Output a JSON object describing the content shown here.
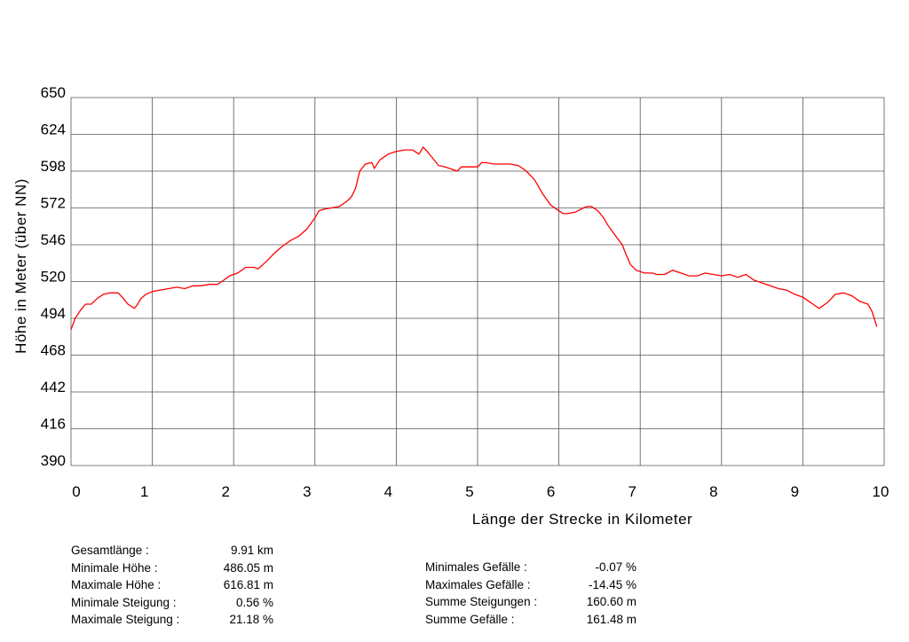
{
  "chart_data": {
    "type": "line",
    "xlabel": "Länge der Strecke in Kilometer",
    "ylabel": "Höhe in Meter (über NN)",
    "xlim": [
      0,
      10
    ],
    "ylim": [
      390,
      650
    ],
    "x_ticks": [
      "0",
      "1",
      "2",
      "3",
      "4",
      "5",
      "6",
      "7",
      "8",
      "9",
      "10"
    ],
    "y_ticks": [
      "650",
      "624",
      "598",
      "572",
      "546",
      "520",
      "494",
      "468",
      "442",
      "416",
      "390"
    ],
    "grid": true,
    "line_color": "#ff0000",
    "series": [
      {
        "x": [
          0,
          0.05,
          0.12,
          0.18,
          0.25,
          0.32,
          0.4,
          0.48,
          0.58,
          0.63,
          0.7,
          0.78,
          0.82,
          0.86,
          0.92,
          1.0,
          1.1,
          1.2,
          1.3,
          1.4,
          1.5,
          1.6,
          1.7,
          1.8,
          1.88,
          1.95,
          2.05,
          2.15,
          2.25,
          2.3,
          2.4,
          2.5,
          2.6,
          2.7,
          2.8,
          2.9,
          3.0,
          3.05,
          3.1,
          3.2,
          3.3,
          3.4,
          3.45,
          3.5,
          3.55,
          3.62,
          3.7,
          3.73,
          3.8,
          3.9,
          4.0,
          4.1,
          4.2,
          4.28,
          4.33,
          4.38,
          4.45,
          4.52,
          4.6,
          4.7,
          4.75,
          4.8,
          4.9,
          5.0,
          5.05,
          5.1,
          5.2,
          5.3,
          5.4,
          5.5,
          5.6,
          5.7,
          5.8,
          5.9,
          6.0,
          6.05,
          6.1,
          6.2,
          6.3,
          6.35,
          6.4,
          6.48,
          6.55,
          6.6,
          6.7,
          6.78,
          6.82,
          6.88,
          6.95,
          7.05,
          7.15,
          7.2,
          7.3,
          7.4,
          7.5,
          7.6,
          7.7,
          7.8,
          7.9,
          8.0,
          8.1,
          8.2,
          8.3,
          8.4,
          8.5,
          8.6,
          8.7,
          8.8,
          8.9,
          9.0,
          9.05,
          9.1,
          9.15,
          9.2,
          9.3,
          9.4,
          9.5,
          9.6,
          9.7,
          9.8,
          9.85,
          9.91
        ],
        "y": [
          486,
          494,
          500,
          504,
          504,
          508,
          511,
          512,
          512,
          509,
          504,
          501,
          504,
          508,
          511,
          513,
          514,
          515,
          516,
          515,
          517,
          517,
          518,
          518,
          521,
          524,
          526,
          530,
          530,
          529,
          534,
          540,
          545,
          549,
          552,
          557,
          565,
          570,
          571,
          572,
          573,
          577,
          580,
          586,
          598,
          603,
          604,
          600,
          606,
          610,
          612,
          613,
          613,
          610,
          615,
          612,
          607,
          602,
          601,
          599,
          598,
          601,
          601,
          601,
          604,
          604,
          603,
          603,
          603,
          602,
          598,
          592,
          582,
          574,
          570,
          568,
          568,
          569,
          572,
          573,
          573,
          570,
          565,
          560,
          552,
          546,
          540,
          532,
          528,
          526,
          526,
          525,
          525,
          528,
          526,
          524,
          524,
          526,
          525,
          524,
          525,
          523,
          525,
          521,
          519,
          517,
          515,
          514,
          511,
          509,
          507,
          505,
          503,
          501,
          505,
          511,
          512,
          510,
          506,
          504,
          499,
          488
        ]
      }
    ]
  },
  "stats_left": [
    {
      "label": "Gesamtlänge :",
      "value": "9.91 km"
    },
    {
      "label": "Minimale Höhe :",
      "value": "486.05 m"
    },
    {
      "label": "Maximale Höhe :",
      "value": "616.81 m"
    },
    {
      "label": "Minimale Steigung :",
      "value": "0.56 %"
    },
    {
      "label": "Maximale Steigung :",
      "value": "21.18 %"
    }
  ],
  "stats_right": [
    {
      "label": "Minimales Gefälle :",
      "value": "-0.07 %"
    },
    {
      "label": "Maximales Gefälle :",
      "value": "-14.45 %"
    },
    {
      "label": "Summe Steigungen :",
      "value": "160.60 m"
    },
    {
      "label": "Summe Gefälle :",
      "value": "161.48 m"
    }
  ]
}
